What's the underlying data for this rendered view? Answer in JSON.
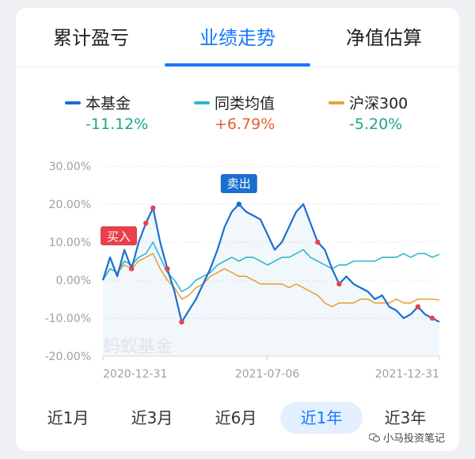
{
  "tabs": [
    {
      "label": "累计盈亏",
      "active": false
    },
    {
      "label": "业绩走势",
      "active": true
    },
    {
      "label": "净值估算",
      "active": false
    }
  ],
  "legend": [
    {
      "name": "本基金",
      "value": "-11.12%",
      "line_color": "#1a6fd1",
      "value_color": "#1aa68a"
    },
    {
      "name": "同类均值",
      "value": "+6.79%",
      "line_color": "#2fb8d0",
      "value_color": "#e2622c"
    },
    {
      "name": "沪深300",
      "value": "-5.20%",
      "line_color": "#e8a33a",
      "value_color": "#1aa68a"
    }
  ],
  "periods": [
    {
      "label": "近1月",
      "active": false
    },
    {
      "label": "近3月",
      "active": false
    },
    {
      "label": "近6月",
      "active": false
    },
    {
      "label": "近1年",
      "active": true
    },
    {
      "label": "近3年",
      "active": false
    }
  ],
  "watermark_brand": "蚂蚁基金",
  "footer_watermark": "小马投资笔记",
  "chart_data": {
    "type": "line",
    "ylim": [
      -20,
      30
    ],
    "y_ticks": [
      "30.00%",
      "20.00%",
      "10.00%",
      "0.00%",
      "-10.00%",
      "-20.00%"
    ],
    "x_ticks": [
      "2020-12-31",
      "2021-07-06",
      "2021-12-31"
    ],
    "grid": true,
    "annotations": [
      {
        "text": "买入"
      },
      {
        "text": "卖出"
      }
    ],
    "series": [
      {
        "name": "本基金",
        "color": "#1a6fd1",
        "values": [
          0,
          6,
          1,
          8,
          3,
          10,
          15,
          19,
          10,
          3,
          -3,
          -11,
          -8,
          -5,
          -1,
          3,
          8,
          14,
          18,
          20,
          18,
          17,
          16,
          12,
          8,
          10,
          14,
          18,
          20,
          15,
          10,
          8,
          3,
          -1,
          1,
          -1,
          -2,
          -3,
          -5,
          -4,
          -7,
          -8,
          -10,
          -9,
          -7,
          -9,
          -10,
          -11
        ]
      },
      {
        "name": "同类均值",
        "color": "#2fb8d0",
        "values": [
          0,
          3,
          2,
          5,
          4,
          6,
          7,
          10,
          6,
          2,
          0,
          -3,
          -2,
          0,
          1,
          2,
          4,
          5,
          6,
          5,
          6,
          6,
          5,
          4,
          5,
          6,
          6,
          7,
          8,
          6,
          5,
          4,
          3,
          4,
          4,
          5,
          5,
          5,
          5,
          6,
          6,
          6,
          7,
          6,
          7,
          7,
          6,
          6.79
        ]
      },
      {
        "name": "沪深300",
        "color": "#e8a33a",
        "values": [
          0,
          3,
          2,
          4,
          3,
          5,
          6,
          7,
          3,
          0,
          -2,
          -5,
          -4,
          -2,
          -1,
          1,
          2,
          3,
          2,
          1,
          1,
          0,
          -1,
          -1,
          -1,
          -1,
          -2,
          -1,
          -2,
          -3,
          -4,
          -6,
          -7,
          -6,
          -6,
          -6,
          -5,
          -5,
          -6,
          -6,
          -6,
          -5,
          -6,
          -6,
          -5,
          -5,
          -5,
          -5.2
        ]
      }
    ]
  }
}
